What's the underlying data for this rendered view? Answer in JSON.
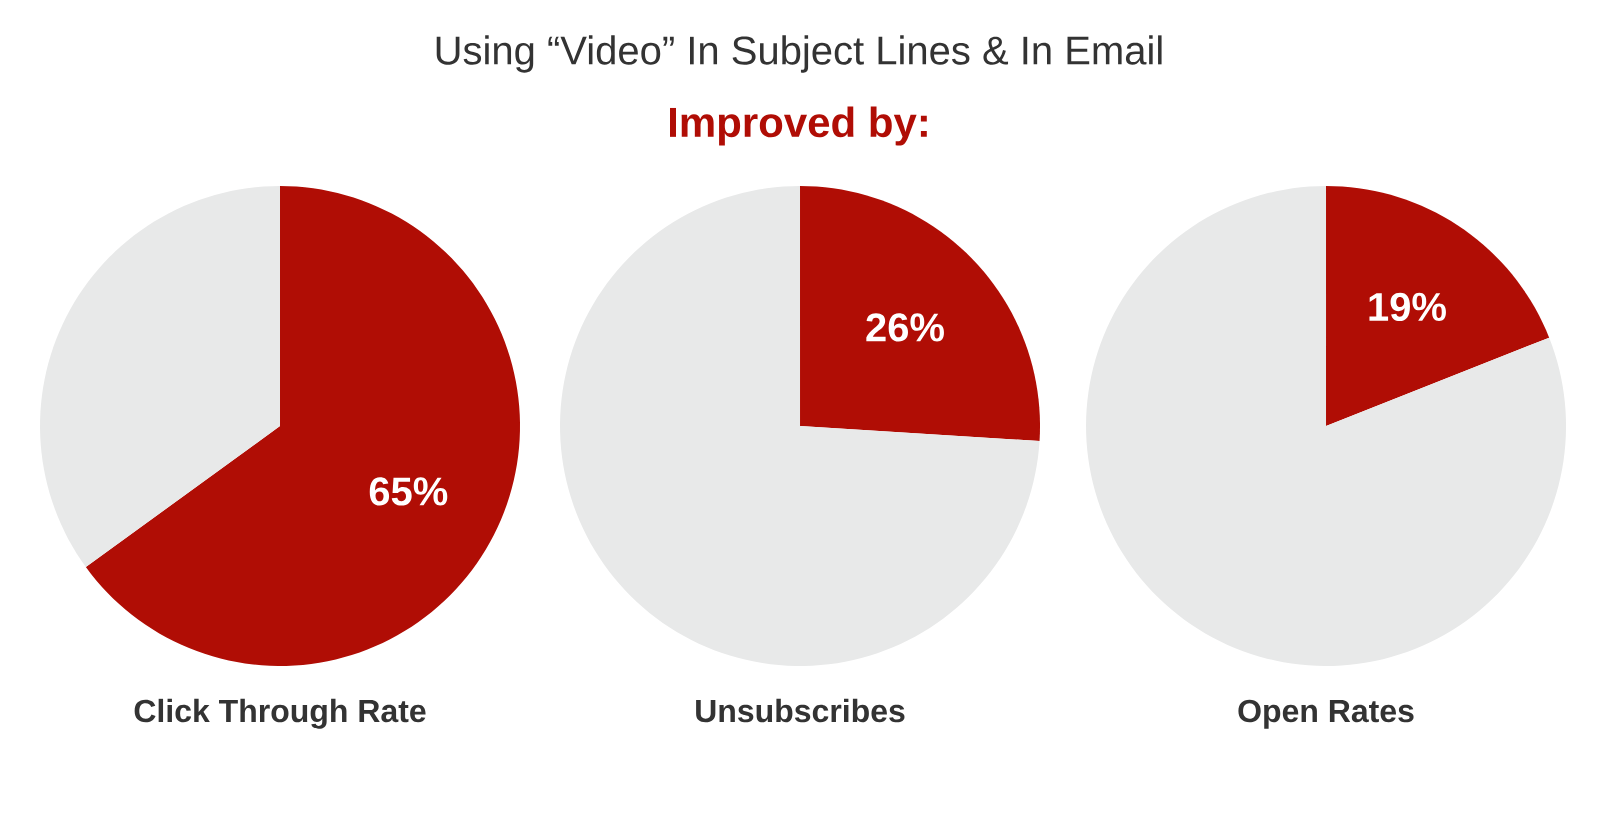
{
  "chart_data": [
    {
      "type": "other",
      "title": "Using “Video” In Subject Lines & In Email",
      "subtitle": "Improved by:"
    },
    {
      "type": "pie",
      "xlabel": "Click Through Rate",
      "categories": [
        null,
        null
      ],
      "values": [
        65,
        35
      ],
      "colors": [
        "#b00d05",
        "#e8e9e9"
      ],
      "value_labels": [
        "65%",
        null
      ]
    },
    {
      "type": "pie",
      "xlabel": "Unsubscribes",
      "categories": [
        null,
        null
      ],
      "values": [
        26,
        74
      ],
      "colors": [
        "#b00d05",
        "#e8e9e9"
      ],
      "value_labels": [
        "26%",
        null
      ]
    },
    {
      "type": "pie",
      "xlabel": "Open Rates",
      "categories": [
        null,
        null
      ],
      "values": [
        19,
        81
      ],
      "colors": [
        "#b00d05",
        "#e8e9e9"
      ],
      "value_labels": [
        "19%",
        null
      ]
    }
  ]
}
